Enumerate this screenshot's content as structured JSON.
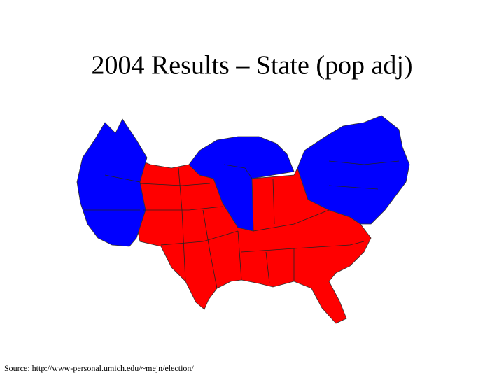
{
  "title": "2004 Results – State (pop adj)",
  "source": "Source: http://www-personal.umich.edu/~mejn/election/"
}
